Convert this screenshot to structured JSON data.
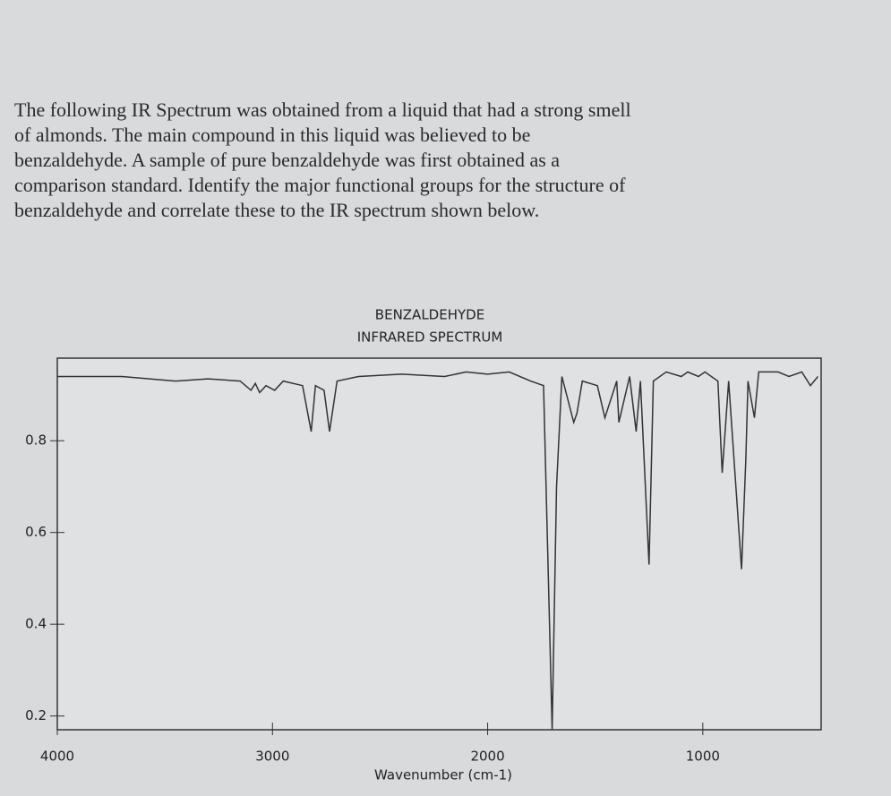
{
  "paragraph": [
    "The following IR Spectrum was obtained from a liquid that had a strong smell",
    "of almonds.  The main compound in this liquid was believed to be",
    "benzaldehyde.  A sample of pure benzaldehyde was first obtained as a",
    "comparison standard.  Identify the major functional groups for the structure of",
    "benzaldehyde and correlate these to the IR spectrum shown below."
  ],
  "chart_data": {
    "type": "line",
    "title": "BENZALDEHYDE",
    "subtitle": "INFRARED SPECTRUM",
    "x_label": "Wavenumber (cm-1)",
    "x": [
      4000,
      3700,
      3450,
      3300,
      3150,
      3100,
      3080,
      3060,
      3030,
      2990,
      2950,
      2860,
      2820,
      2800,
      2760,
      2735,
      2700,
      2600,
      2400,
      2200,
      2100,
      2000,
      1900,
      1800,
      1740,
      1700,
      1680,
      1655,
      1600,
      1585,
      1560,
      1490,
      1455,
      1400,
      1390,
      1340,
      1310,
      1290,
      1250,
      1230,
      1170,
      1100,
      1070,
      1020,
      990,
      930,
      910,
      880,
      820,
      800,
      790,
      760,
      740,
      650,
      600,
      540,
      500,
      465
    ],
    "series": [
      {
        "color": "#333333",
        "values": [
          0.94,
          0.94,
          0.93,
          0.935,
          0.93,
          0.91,
          0.925,
          0.905,
          0.92,
          0.91,
          0.93,
          0.92,
          0.82,
          0.92,
          0.91,
          0.82,
          0.93,
          0.94,
          0.945,
          0.94,
          0.95,
          0.945,
          0.95,
          0.93,
          0.92,
          0.17,
          0.7,
          0.94,
          0.84,
          0.86,
          0.93,
          0.92,
          0.85,
          0.93,
          0.84,
          0.94,
          0.82,
          0.93,
          0.53,
          0.93,
          0.95,
          0.94,
          0.95,
          0.94,
          0.95,
          0.93,
          0.73,
          0.93,
          0.52,
          0.76,
          0.93,
          0.85,
          0.95,
          0.95,
          0.94,
          0.95,
          0.92,
          0.94
        ]
      }
    ],
    "xlim": [
      4000,
      450
    ],
    "xticks": [
      4000,
      3000,
      2000,
      1000
    ],
    "ylim": [
      0.17,
      0.98
    ],
    "yticks": [
      0.2,
      0.4,
      0.6,
      0.8
    ],
    "grid": false
  }
}
